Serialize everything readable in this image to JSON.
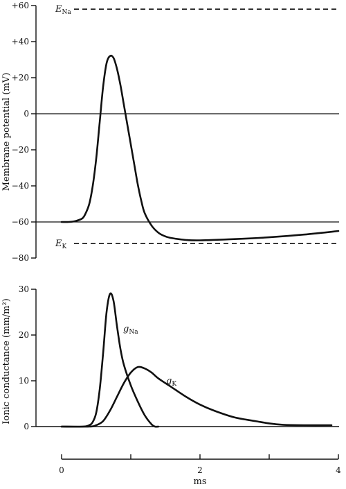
{
  "chart_data": [
    {
      "type": "line",
      "ylabel": "Membrane potential (mV)",
      "ylim": [
        -80,
        60
      ],
      "y_ticks": [
        "+60",
        "+40",
        "+20",
        "0",
        "−20",
        "−40",
        "−60",
        "−80"
      ],
      "y_tick_values": [
        60,
        40,
        20,
        0,
        -20,
        -40,
        -60,
        -80
      ],
      "reference_lines": [
        {
          "name": "E",
          "subscript": "Na",
          "value": 58,
          "style": "dashed"
        },
        {
          "name": "E",
          "subscript": "K",
          "value": -72,
          "style": "dashed"
        },
        {
          "name": "",
          "subscript": "",
          "value": 0,
          "style": "solid"
        },
        {
          "name": "",
          "subscript": "",
          "value": -60,
          "style": "solid"
        }
      ],
      "series": [
        {
          "x": [
            0,
            0.1,
            0.2,
            0.3,
            0.35,
            0.4,
            0.45,
            0.5,
            0.55,
            0.6,
            0.65,
            0.7,
            0.75,
            0.8,
            0.85,
            0.9,
            0.95,
            1.0,
            1.05,
            1.1,
            1.15,
            1.2,
            1.3,
            1.4,
            1.5,
            1.6,
            1.8,
            2.0,
            2.5,
            3.0,
            3.5,
            4.0
          ],
          "y": [
            -60,
            -60,
            -59.5,
            -58,
            -55,
            -50,
            -40,
            -25,
            -5,
            15,
            28,
            32,
            31,
            25,
            16,
            5,
            -6,
            -17,
            -28,
            -39,
            -48,
            -55,
            -62,
            -66,
            -68,
            -69,
            -70,
            -70.2,
            -69.5,
            -68.5,
            -67,
            -65
          ]
        }
      ]
    },
    {
      "type": "line",
      "ylabel": "Ionic conductance (mm/m²)",
      "ylim": [
        0,
        30
      ],
      "y_ticks": [
        "30",
        "20",
        "10",
        "0"
      ],
      "y_tick_values": [
        30,
        20,
        10,
        0
      ],
      "xlabel": "ms",
      "xlim": [
        0,
        4
      ],
      "x_ticks": [
        "0",
        "2",
        "4"
      ],
      "x_tick_values": [
        0,
        2,
        4
      ],
      "x_minor_ticks": [
        1,
        3
      ],
      "series": [
        {
          "name": "g",
          "subscript": "Na",
          "x": [
            0,
            0.3,
            0.4,
            0.45,
            0.5,
            0.55,
            0.6,
            0.65,
            0.7,
            0.75,
            0.8,
            0.85,
            0.9,
            1.0,
            1.1,
            1.2,
            1.3,
            1.35,
            1.4
          ],
          "y": [
            0,
            0,
            0.3,
            1,
            3,
            8,
            16,
            25,
            29,
            27.5,
            22,
            17,
            13.5,
            9,
            5.5,
            2.5,
            0.5,
            0,
            0
          ]
        },
        {
          "name": "g",
          "subscript": "K",
          "x": [
            0,
            0.4,
            0.5,
            0.6,
            0.7,
            0.8,
            0.9,
            1.0,
            1.1,
            1.2,
            1.3,
            1.4,
            1.6,
            1.8,
            2.0,
            2.2,
            2.5,
            2.8,
            3.0,
            3.2,
            3.5,
            3.9
          ],
          "y": [
            0,
            0,
            0.3,
            1.2,
            3.5,
            6.5,
            9.5,
            11.8,
            13,
            12.7,
            11.8,
            10.5,
            8.5,
            6.5,
            4.8,
            3.5,
            2,
            1.2,
            0.7,
            0.4,
            0.3,
            0.3
          ]
        }
      ]
    }
  ]
}
